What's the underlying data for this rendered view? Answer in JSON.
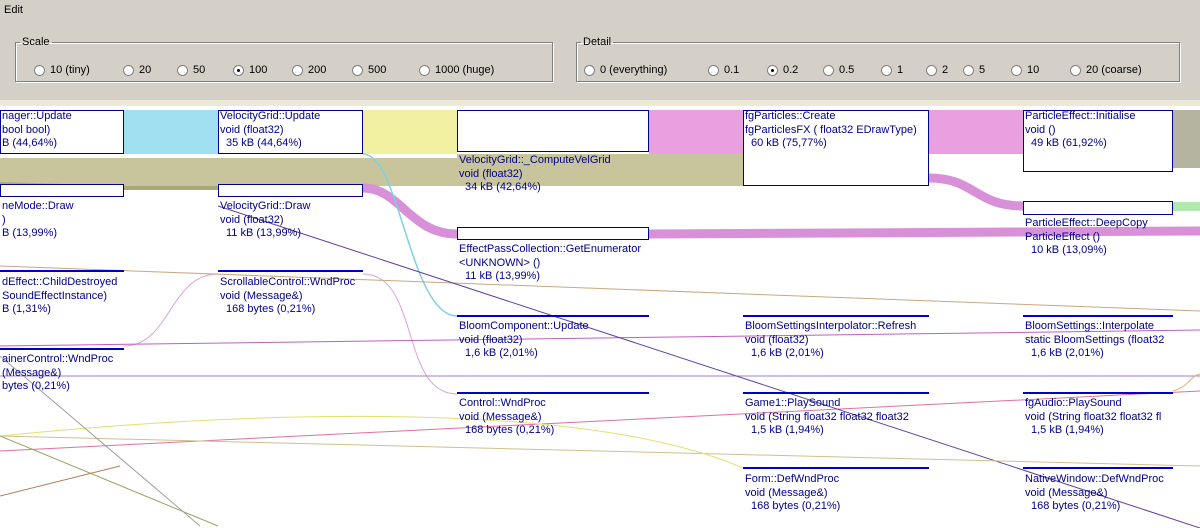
{
  "menu": {
    "edit": "Edit"
  },
  "scale": {
    "legend": "Scale",
    "options": [
      "10 (tiny)",
      "20",
      "50",
      "100",
      "200",
      "500",
      "1000 (huge)"
    ],
    "selected": "100"
  },
  "detail": {
    "legend": "Detail",
    "options": [
      "0 (everything)",
      "0.1",
      "0.2",
      "0.5",
      "1",
      "2",
      "5",
      "10",
      "20 (coarse)"
    ],
    "selected": "0.2"
  },
  "colors": {
    "cyan": "#a0e0f0",
    "yellow": "#f0f0a0",
    "pink": "#e8a0e0",
    "olive": "#c8c49c",
    "green": "#b0e8b0",
    "gray": "#b4b4a0",
    "text": "#00008b",
    "bar": "#0000cc"
  },
  "nodes": [
    {
      "l1": "nager::Update",
      "l2": " bool bool)",
      "l3": "B    (44,64%)"
    },
    {
      "l1": "VelocityGrid::Update",
      "l2": "void (float32)",
      "l3": "35 kB    (44,64%)"
    },
    {
      "l1": "VelocityGrid::_ComputeVelGrid",
      "l2": "void (float32)",
      "l3": "34 kB    (42,64%)"
    },
    {
      "l1": "fgParticles::Create",
      "l2": "fgParticlesFX (  float32 EDrawType)",
      "l3": "60 kB    (75,77%)"
    },
    {
      "l1": "ParticleEffect::Initialise",
      "l2": "void ()",
      "l3": "49 kB    (61,92%)"
    },
    {
      "l1": "neMode::Draw",
      "l2": ")",
      "l3": "B    (13,99%)"
    },
    {
      "l1": "VelocityGrid::Draw",
      "l2": "void (float32)",
      "l3": "11 kB    (13,99%)"
    },
    {
      "l1": "EffectPassCollection::GetEnumerator",
      "l2": "<UNKNOWN> ()",
      "l3": "11 kB    (13,99%)"
    },
    {
      "l1": "ParticleEffect::DeepCopy",
      "l2": "ParticleEffect ()",
      "l3": "10 kB    (13,09%)"
    },
    {
      "l1": "dEffect::ChildDestroyed",
      "l2": "SoundEffectInstance)",
      "l3": "B    (1,31%)"
    },
    {
      "l1": "ScrollableControl::WndProc",
      "l2": "void (Message&)",
      "l3": "168 bytes  (0,21%)"
    },
    {
      "l1": "BloomComponent::Update",
      "l2": "void (float32)",
      "l3": "1,6 kB    (2,01%)"
    },
    {
      "l1": "BloomSettingsInterpolator::Refresh",
      "l2": "void (float32)",
      "l3": "1,6 kB    (2,01%)"
    },
    {
      "l1": "BloomSettings::Interpolate",
      "l2": "static BloomSettings (float32",
      "l3": "1,6 kB    (2,01%)"
    },
    {
      "l1": "ainerControl::WndProc",
      "l2": "(Message&)",
      "l3": "bytes (0,21%)"
    },
    {
      "l1": "Control::WndProc",
      "l2": "void (Message&)",
      "l3": "168 bytes (0,21%)"
    },
    {
      "l1": "Game1::PlaySound",
      "l2": "void (String float32 float32 float32",
      "l3": "1,5 kB    (1,94%)"
    },
    {
      "l1": "fgAudio::PlaySound",
      "l2": "void  (String float32  float32 fl",
      "l3": "1,5 kB    (1,94%)"
    },
    {
      "l1": "Form::DefWndProc",
      "l2": "void (Message&)",
      "l3": "168 bytes (0,21%)"
    },
    {
      "l1": "NativeWindow::DefWndProc",
      "l2": "void (Message&)",
      "l3": "168 bytes (0,21%)"
    }
  ]
}
